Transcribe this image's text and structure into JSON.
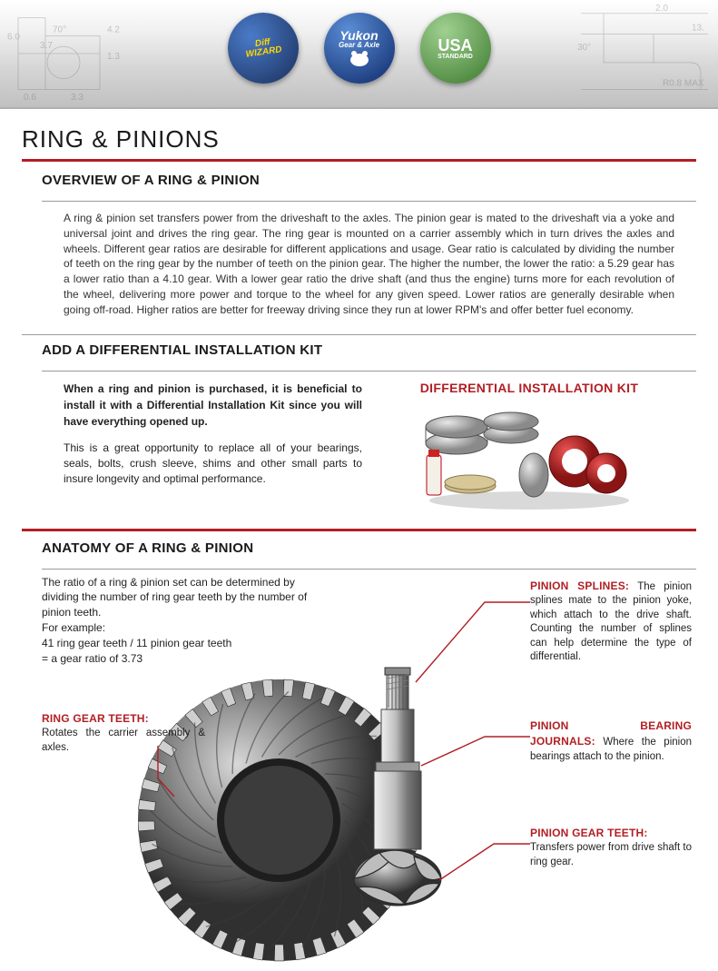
{
  "colors": {
    "accent_red": "#b11f24",
    "text_body": "#333333",
    "text_heading": "#1a1a1a",
    "rule_grey": "#9a9a9a",
    "header_grad_top": "#ffffff",
    "header_grad_bottom": "#c0c0c0"
  },
  "header": {
    "logos": {
      "diffwizard": {
        "line1": "Diff",
        "line2": "WIZARD"
      },
      "yukon": {
        "line1": "Yukon",
        "line2": "Gear & Axle"
      },
      "usa": {
        "big": "USA",
        "sub": "STANDARD"
      }
    },
    "bg_dims": [
      "6.0",
      "3.7",
      "70°",
      "4.2",
      "1.3",
      "0.6",
      "3.3",
      "30°",
      "13.",
      "R0.8 MAX",
      "2.0"
    ]
  },
  "page": {
    "title": "RING & PINIONS"
  },
  "overview": {
    "heading": "OVERVIEW OF A RING & PINION",
    "paragraph": "A ring & pinion set transfers power from the driveshaft to the axles. The pinion gear is mated to the driveshaft via a yoke and universal joint and drives the ring gear. The ring gear is mounted on a carrier assembly which in turn drives the axles and wheels. Different gear ratios are desirable for different applications and usage. Gear ratio is calculated by dividing the number of teeth on the ring gear by the number of teeth on the pinion gear. The higher the number, the lower the ratio: a 5.29 gear has a lower ratio than a 4.10 gear. With a lower gear ratio the drive shaft (and thus the engine) turns more for each revolution of the wheel, delivering more power and torque to the wheel for any given speed. Lower ratios are generally desirable when going off-road. Higher ratios are better for freeway driving since they run at lower RPM's and offer better fuel economy."
  },
  "kit": {
    "heading": "ADD A DIFFERENTIAL INSTALLATION KIT",
    "image_heading": "DIFFERENTIAL INSTALLATION KIT",
    "lede": "When a ring and pinion is purchased, it is beneficial to install it with a Differential Installation Kit since you will have everything opened up.",
    "sub": "This is a great opportunity to replace all of your bearings, seals, bolts, crush sleeve, shims and other small parts to insure longevity and optimal performance."
  },
  "anatomy": {
    "heading": "ANATOMY OF A RING & PINION",
    "intro_lines": [
      "The ratio of a ring & pinion set can be determined by dividing the number of ring gear teeth by the number of pinion teeth.",
      "For example:",
      "41 ring gear teeth / 11 pinion gear teeth",
      "= a gear ratio of 3.73"
    ],
    "callouts": {
      "ring_teeth": {
        "label": "RING GEAR TEETH:",
        "text": "Rotates the carrier assembly & axles."
      },
      "pinion_splines": {
        "label": "PINION SPLINES:",
        "text": "The pinion splines mate to the pinion yoke, which attach to the drive shaft. Counting the number of splines can help determine the type of differential."
      },
      "bearing_journals": {
        "label": "PINION BEARING JOURNALS:",
        "text": "Where the pinion bearings attach to the pinion."
      },
      "pinion_teeth": {
        "label": "PINION GEAR TEETH:",
        "text": "Transfers power from drive shaft to ring gear."
      }
    },
    "visual": {
      "ring_outer_radius": 155,
      "ring_inner_radius": 68,
      "tooth_count": 41,
      "ring_fill": "#5c5c5c",
      "ring_highlight": "#cfcfcf",
      "ring_shadow": "#2a2a2a",
      "pinion_shaft_color": "#b6b6b6",
      "pinion_shaft_shadow": "#6a6a6a",
      "leader_color": "#b11f24",
      "leader_width": 1.4
    }
  }
}
